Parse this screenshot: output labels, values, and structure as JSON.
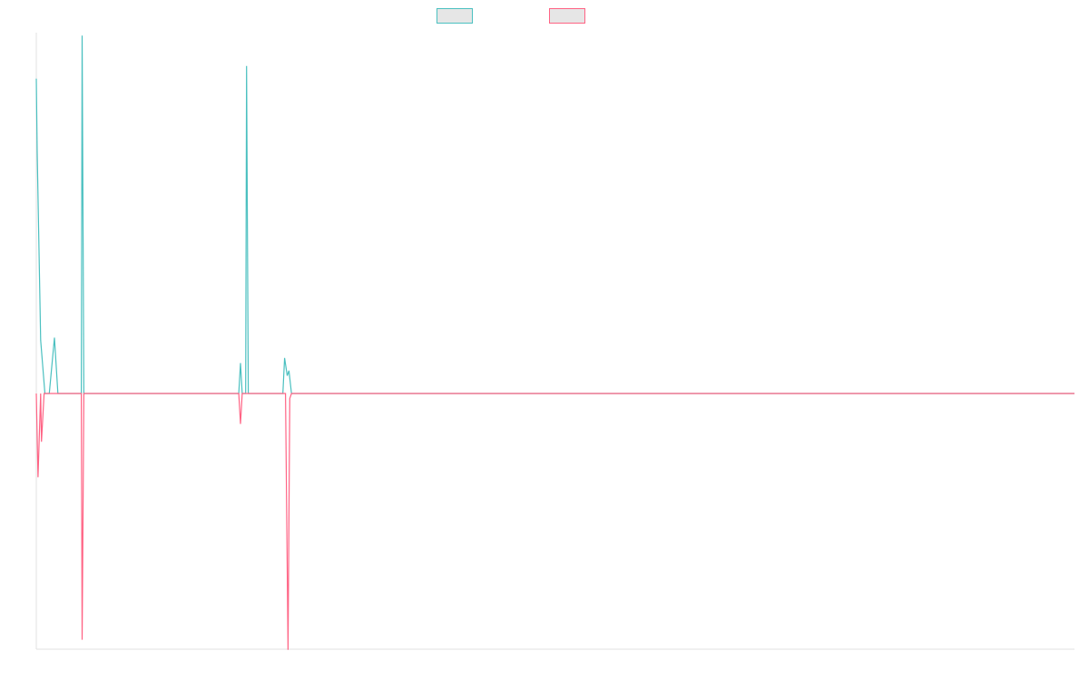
{
  "chart_data": {
    "type": "line",
    "title": "",
    "xlabel": "",
    "ylabel": "",
    "xlim": [
      0,
      1200
    ],
    "ylim": [
      -1.0,
      1.45
    ],
    "grid": false,
    "legend_position": "top",
    "series": [
      {
        "color": "#4bc0c0",
        "fill": "#e6e6e6",
        "points": [
          [
            0,
            1.24
          ],
          [
            1,
            0.95
          ],
          [
            5,
            0.21
          ],
          [
            10,
            0
          ],
          [
            15,
            0
          ],
          [
            21,
            0.22
          ],
          [
            25,
            0
          ],
          [
            50,
            0
          ],
          [
            52,
            0
          ],
          [
            53,
            1.41
          ],
          [
            55,
            0
          ],
          [
            234,
            0
          ],
          [
            236,
            0.12
          ],
          [
            238,
            0
          ],
          [
            242,
            0
          ],
          [
            243,
            1.29
          ],
          [
            245,
            0
          ],
          [
            285,
            0
          ],
          [
            287,
            0.14
          ],
          [
            290,
            0.07
          ],
          [
            292,
            0.09
          ],
          [
            295,
            0
          ],
          [
            1200,
            0
          ]
        ]
      },
      {
        "color": "#ff6384",
        "fill": "#e6e6e6",
        "points": [
          [
            0,
            0
          ],
          [
            2,
            -0.33
          ],
          [
            5,
            0
          ],
          [
            6,
            -0.19
          ],
          [
            9,
            0
          ],
          [
            10,
            0
          ],
          [
            50,
            0
          ],
          [
            52,
            0
          ],
          [
            53,
            -0.97
          ],
          [
            55,
            0
          ],
          [
            234,
            0
          ],
          [
            236,
            -0.12
          ],
          [
            238,
            0
          ],
          [
            288,
            0
          ],
          [
            291,
            -1.01
          ],
          [
            293,
            -0.02
          ],
          [
            295,
            0
          ],
          [
            1200,
            0
          ]
        ]
      }
    ]
  }
}
